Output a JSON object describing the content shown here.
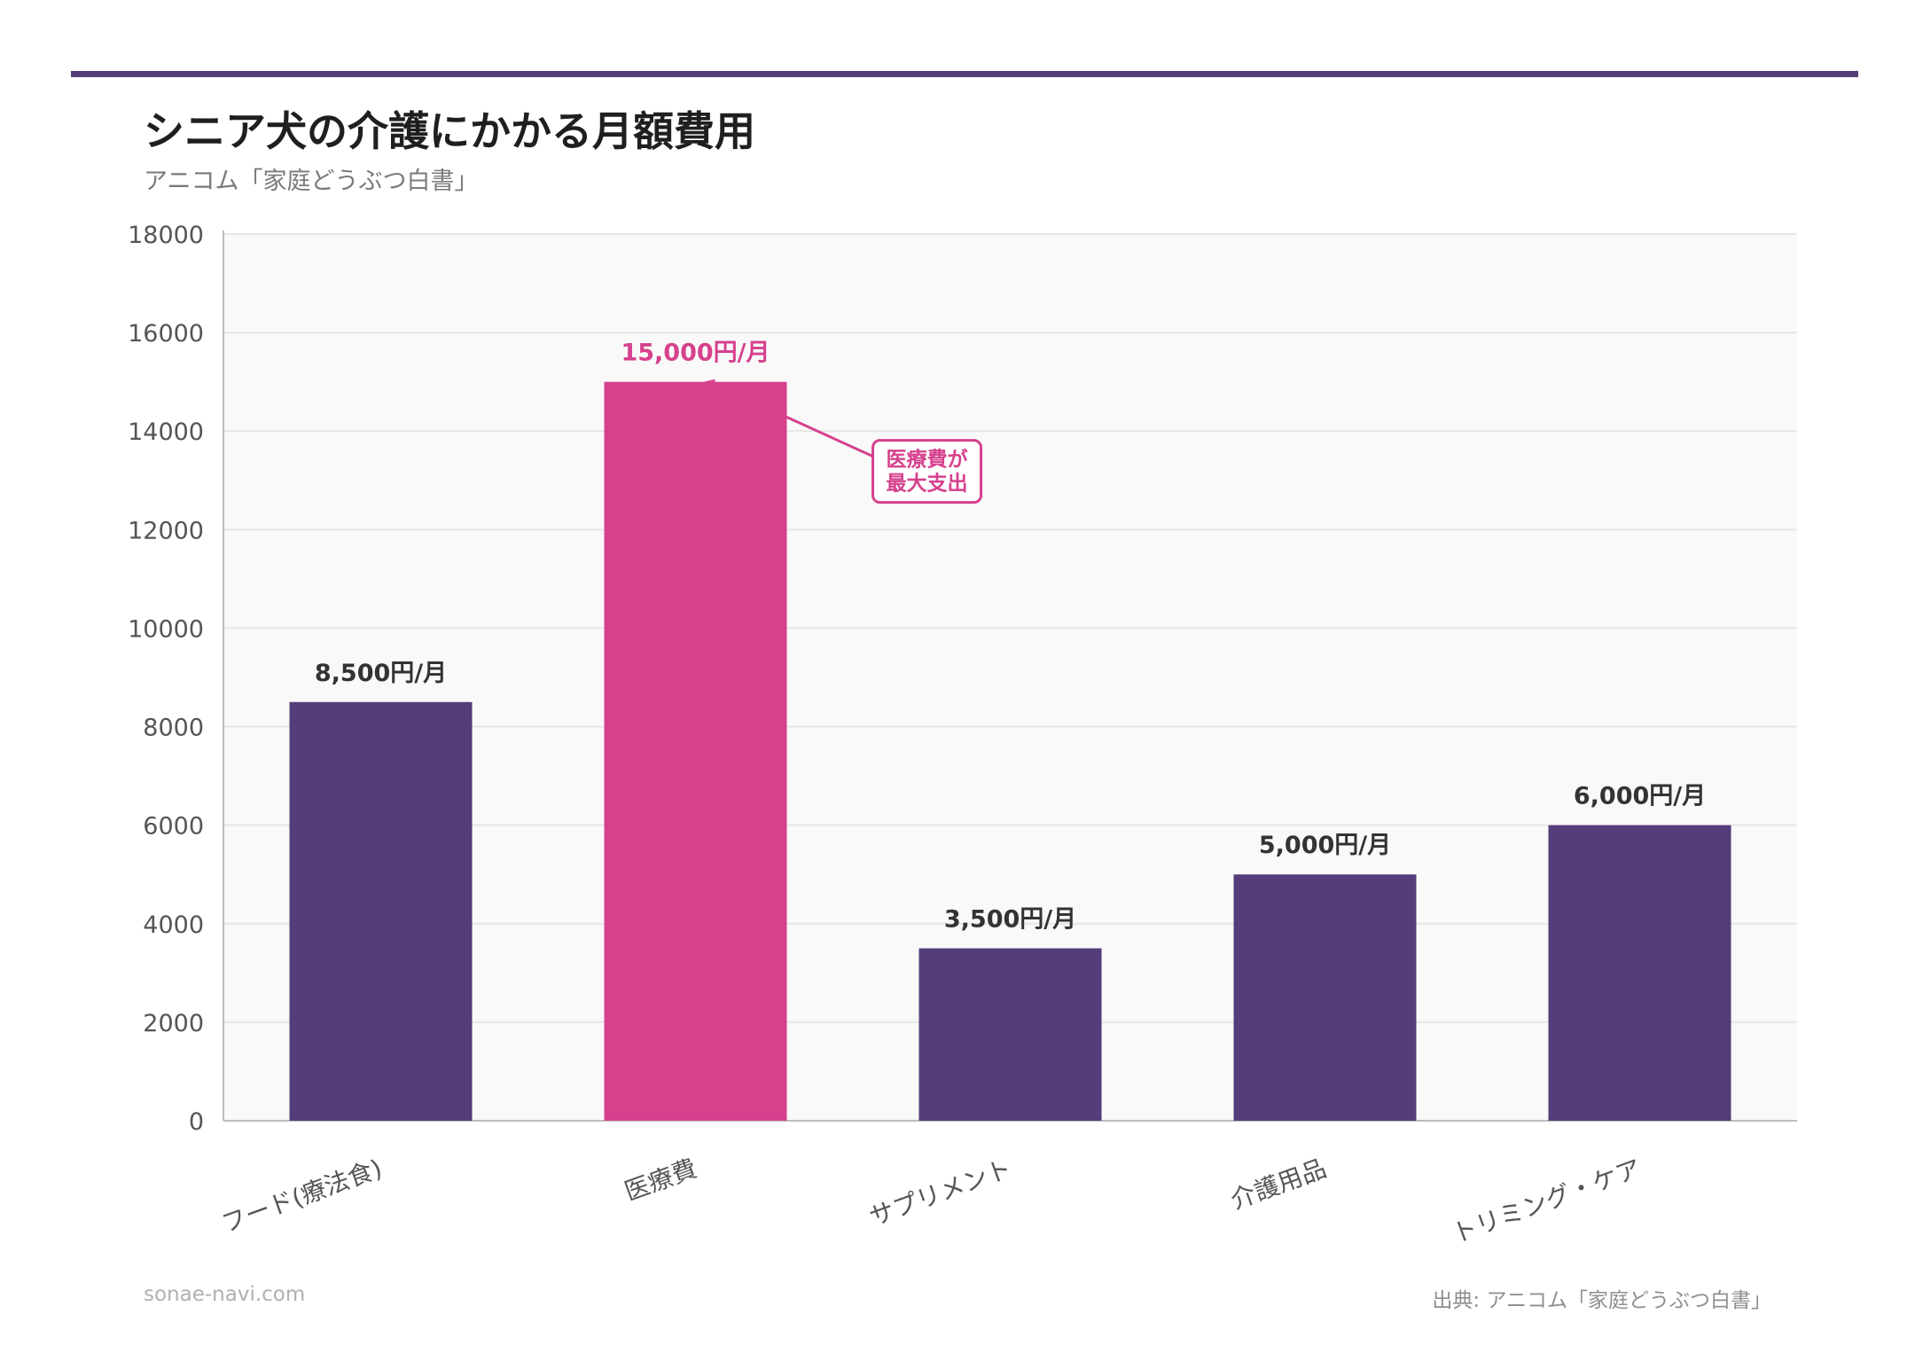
{
  "header": {
    "title": "シニア犬の介護にかかる月額費用",
    "subtitle": "アニコム「家庭どうぶつ白書」"
  },
  "footer": {
    "site": "sonae-navi.com",
    "source": "出典: アニコム「家庭どうぶつ白書」"
  },
  "colors": {
    "primary": "#553c7a",
    "highlight": "#d6418d",
    "plot_bg": "#f9f9f9",
    "grid": "#e6e6e6",
    "axis": "#bdbdbd",
    "text": "#333333",
    "tick": "#555555"
  },
  "chart_data": {
    "type": "bar",
    "title": "シニア犬の介護にかかる月額費用",
    "xlabel": "",
    "ylabel": "",
    "categories": [
      "フード(療法食)",
      "医療費",
      "サプリメント",
      "介護用品",
      "トリミング・ケア"
    ],
    "values": [
      8500,
      15000,
      3500,
      5000,
      6000
    ],
    "value_labels": [
      "8,500円/月",
      "15,000円/月",
      "3,500円/月",
      "5,000円/月",
      "6,000円/月"
    ],
    "highlight_index": 1,
    "ylim": [
      0,
      18000
    ],
    "yticks": [
      0,
      2000,
      4000,
      6000,
      8000,
      10000,
      12000,
      14000,
      16000,
      18000
    ],
    "grid": true,
    "annotation": {
      "target_index": 1,
      "lines": [
        "医療費が",
        "最大支出"
      ]
    }
  }
}
